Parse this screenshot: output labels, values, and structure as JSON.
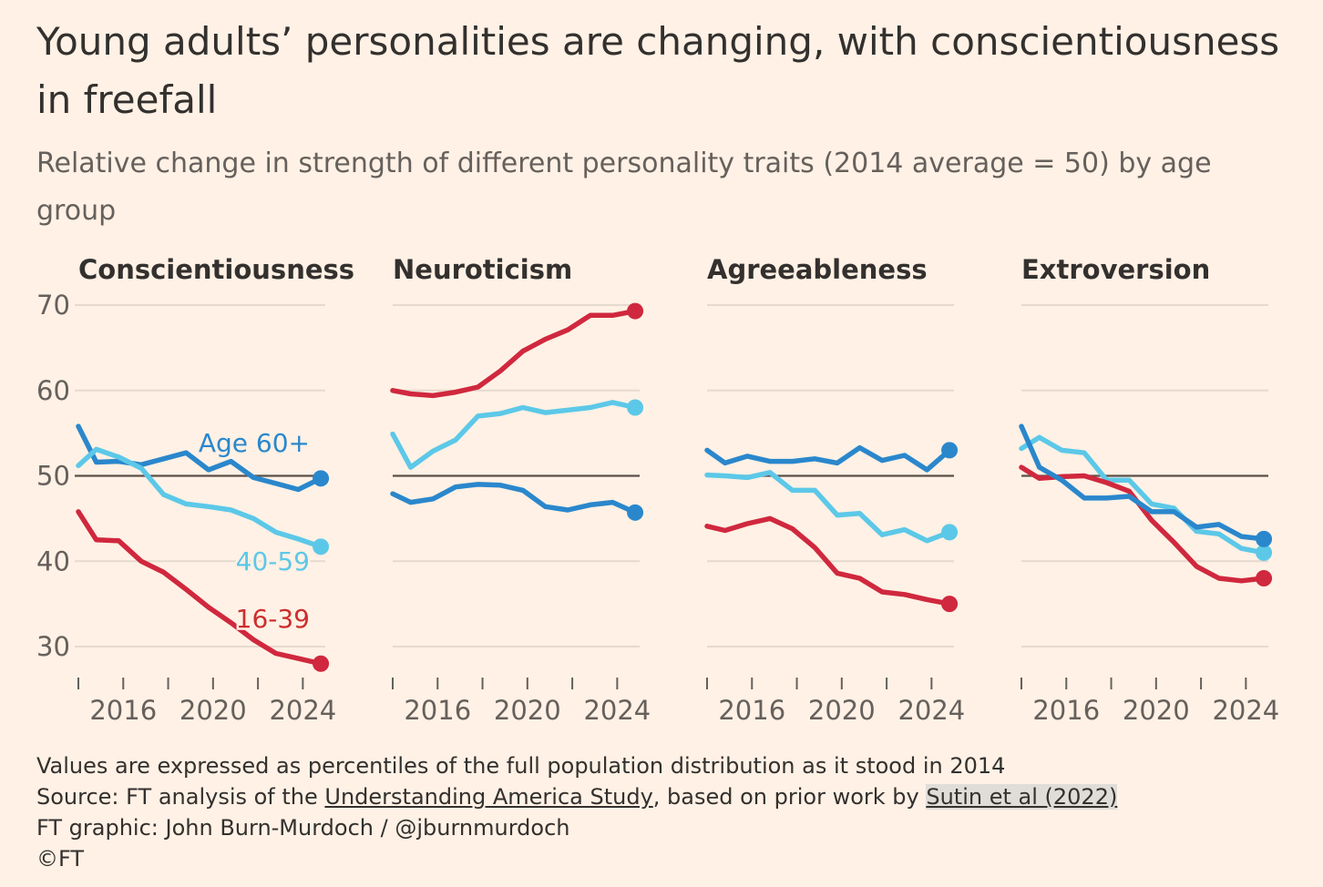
{
  "title": "Young adults’ personalities are changing, with conscientiousness in freefall",
  "subtitle": "Relative change in strength of different personality traits (2014 average = 50) by age group",
  "colors": {
    "background": "#FFF1E5",
    "age_60_plus": "#2A87CC",
    "age_40_59": "#5CC8E8",
    "age_16_39": "#D0283E",
    "reference_line": "#5B4F49",
    "gridline": "#E6D9CE",
    "label_16_39": "#CC2E2E"
  },
  "chart_data": {
    "type": "line",
    "ylim": [
      25,
      72
    ],
    "xlim": [
      2014,
      2025
    ],
    "yticks": [
      "70",
      "60",
      "50",
      "40",
      "30"
    ],
    "ytick_values": [
      70,
      60,
      50,
      40,
      30
    ],
    "xtick_labels": [
      "2016",
      "2020",
      "2024"
    ],
    "xtick_values": [
      2016,
      2020,
      2024
    ],
    "minor_tick_years": [
      2014,
      2016,
      2018,
      2020,
      2022,
      2024
    ],
    "reference_value": 50,
    "x": [
      2014,
      2014.8,
      2015.8,
      2016.8,
      2017.8,
      2018.8,
      2019.8,
      2020.8,
      2021.8,
      2022.8,
      2023.8,
      2024.8
    ],
    "panels": [
      {
        "title": "Conscientiousness",
        "series": [
          {
            "name": "Age 60+",
            "key": "age_60_plus",
            "values": [
              55.8,
              51.6,
              51.7,
              51.3,
              52.0,
              52.7,
              50.7,
              51.7,
              49.8,
              49.1,
              48.4,
              49.7
            ]
          },
          {
            "name": "40-59",
            "key": "age_40_59",
            "values": [
              51.2,
              53.1,
              52.2,
              50.9,
              47.8,
              46.7,
              46.4,
              46.0,
              45.0,
              43.4,
              42.6,
              41.7
            ]
          },
          {
            "name": "16-39",
            "key": "age_16_39",
            "values": [
              45.8,
              42.5,
              42.4,
              40.0,
              38.7,
              36.7,
              34.6,
              32.8,
              30.8,
              29.2,
              28.6,
              28.0
            ]
          }
        ],
        "labels": [
          {
            "text": "Age 60+",
            "key": "age_60_plus"
          },
          {
            "text": "40-59",
            "key": "age_40_59"
          },
          {
            "text": "16-39",
            "key": "label_16_39"
          }
        ]
      },
      {
        "title": "Neuroticism",
        "series": [
          {
            "name": "Age 60+",
            "key": "age_60_plus",
            "values": [
              47.9,
              46.9,
              47.3,
              48.7,
              49.0,
              48.9,
              48.3,
              46.4,
              46.0,
              46.6,
              46.9,
              45.7
            ]
          },
          {
            "name": "40-59",
            "key": "age_40_59",
            "values": [
              54.9,
              51.0,
              52.9,
              54.2,
              57.0,
              57.3,
              58.0,
              57.4,
              57.7,
              58.0,
              58.6,
              58.0
            ]
          },
          {
            "name": "16-39",
            "key": "age_16_39",
            "values": [
              60.0,
              59.6,
              59.4,
              59.8,
              60.4,
              62.3,
              64.6,
              66.0,
              67.1,
              68.8,
              68.8,
              69.3
            ]
          }
        ],
        "labels": []
      },
      {
        "title": "Agreeableness",
        "series": [
          {
            "name": "Age 60+",
            "key": "age_60_plus",
            "values": [
              53.0,
              51.5,
              52.3,
              51.7,
              51.7,
              52.0,
              51.5,
              53.3,
              51.8,
              52.4,
              50.7,
              53.0
            ]
          },
          {
            "name": "40-59",
            "key": "age_40_59",
            "values": [
              50.1,
              50.0,
              49.8,
              50.4,
              48.3,
              48.3,
              45.4,
              45.6,
              43.1,
              43.7,
              42.4,
              43.4
            ]
          },
          {
            "name": "16-39",
            "key": "age_16_39",
            "values": [
              44.1,
              43.6,
              44.4,
              45.0,
              43.8,
              41.6,
              38.6,
              38.0,
              36.4,
              36.1,
              35.5,
              35.0
            ]
          }
        ],
        "labels": []
      },
      {
        "title": "Extroversion",
        "series": [
          {
            "name": "40-59",
            "key": "age_40_59",
            "values": [
              53.2,
              54.5,
              53.0,
              52.7,
              49.5,
              49.5,
              46.7,
              46.2,
              43.5,
              43.2,
              41.5,
              41.0
            ]
          },
          {
            "name": "16-39",
            "key": "age_16_39",
            "values": [
              51.0,
              49.7,
              49.9,
              50.0,
              49.2,
              48.2,
              44.8,
              42.2,
              39.4,
              38.0,
              37.7,
              38.0
            ]
          },
          {
            "name": "Age 60+",
            "key": "age_60_plus",
            "values": [
              55.8,
              51.0,
              49.5,
              47.4,
              47.4,
              47.6,
              45.8,
              45.8,
              44.0,
              44.3,
              42.9,
              42.6
            ]
          }
        ],
        "labels": []
      }
    ]
  },
  "footer": {
    "note": "Values are expressed as percentiles of the full population distribution as it stood in 2014",
    "source_prefix": "Source: FT analysis of the ",
    "source_link1": "Understanding America Study",
    "source_middle": ", based on prior work by ",
    "source_link2": "Sutin et al (2022)",
    "credit": "FT graphic: John Burn-Murdoch / @jburnmurdoch",
    "copyright": "©FT"
  }
}
